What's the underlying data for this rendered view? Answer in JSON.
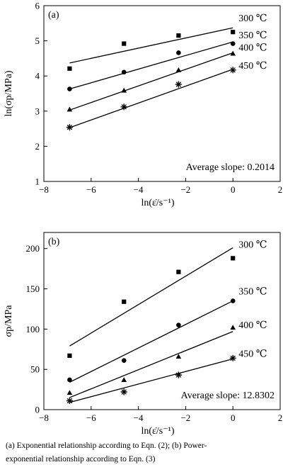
{
  "chart_data": [
    {
      "type": "scatter",
      "panel_label": "(a)",
      "xlabel": "ln(ε̇/s⁻¹)",
      "ylabel": "ln(σp/MPa)",
      "xlim": [
        -8,
        2
      ],
      "ylim": [
        1,
        6
      ],
      "xticks": [
        -8,
        -6,
        -4,
        -2,
        0,
        2
      ],
      "yticks": [
        1,
        2,
        3,
        4,
        5,
        6
      ],
      "annotation": "Average slope: 0.2014",
      "series": [
        {
          "name": "300 ℃",
          "marker": "square",
          "x": [
            -6.91,
            -4.61,
            -2.3,
            0
          ],
          "y": [
            4.21,
            4.92,
            5.15,
            5.25
          ],
          "fit": [
            [
              -6.91,
              4.37
            ],
            [
              0,
              5.37
            ]
          ]
        },
        {
          "name": "350 ℃",
          "marker": "circle",
          "x": [
            -6.91,
            -4.61,
            -2.3,
            0
          ],
          "y": [
            3.63,
            4.11,
            4.66,
            4.92
          ],
          "fit": [
            [
              -6.91,
              3.63
            ],
            [
              0,
              4.97
            ]
          ]
        },
        {
          "name": "400 ℃",
          "marker": "triangle",
          "x": [
            -6.91,
            -4.61,
            -2.3,
            0
          ],
          "y": [
            3.05,
            3.59,
            4.17,
            4.64
          ],
          "fit": [
            [
              -6.91,
              3.03
            ],
            [
              0,
              4.66
            ]
          ]
        },
        {
          "name": "450 ℃",
          "marker": "star",
          "x": [
            -6.91,
            -4.61,
            -2.3,
            0
          ],
          "y": [
            2.54,
            3.12,
            3.76,
            4.17
          ],
          "fit": [
            [
              -6.91,
              2.53
            ],
            [
              0,
              4.19
            ]
          ]
        }
      ]
    },
    {
      "type": "scatter",
      "panel_label": "(b)",
      "xlabel": "ln(ε̇/s⁻¹)",
      "ylabel": "σp/MPa",
      "xlim": [
        -8,
        2
      ],
      "ylim": [
        0,
        220
      ],
      "xticks": [
        -8,
        -6,
        -4,
        -2,
        0,
        2
      ],
      "yticks": [
        0,
        50,
        100,
        150,
        200
      ],
      "annotation": "Average slope: 12.8302",
      "series": [
        {
          "name": "300 ℃",
          "marker": "square",
          "x": [
            -6.91,
            -4.61,
            -2.3,
            0
          ],
          "y": [
            67,
            134,
            171,
            188
          ],
          "fit": [
            [
              -6.91,
              79
            ],
            [
              0,
              201
            ]
          ]
        },
        {
          "name": "350 ℃",
          "marker": "circle",
          "x": [
            -6.91,
            -4.61,
            -2.3,
            0
          ],
          "y": [
            37,
            61,
            105,
            135
          ],
          "fit": [
            [
              -6.91,
              34
            ],
            [
              0,
              135
            ]
          ]
        },
        {
          "name": "400 ℃",
          "marker": "triangle",
          "x": [
            -6.91,
            -4.61,
            -2.3,
            0
          ],
          "y": [
            21,
            37,
            66,
            102
          ],
          "fit": [
            [
              -6.91,
              15
            ],
            [
              0,
              97
            ]
          ]
        },
        {
          "name": "450 ℃",
          "marker": "star",
          "x": [
            -6.91,
            -4.61,
            -2.3,
            0
          ],
          "y": [
            11,
            22,
            43,
            64
          ],
          "fit": [
            [
              -6.91,
              9
            ],
            [
              0,
              63
            ]
          ]
        }
      ]
    }
  ],
  "caption": {
    "line1": "(a) Exponential relationship according to Eqn. (2); (b) Power-",
    "line2": "exponential relationship according to Eqn. (3)"
  }
}
